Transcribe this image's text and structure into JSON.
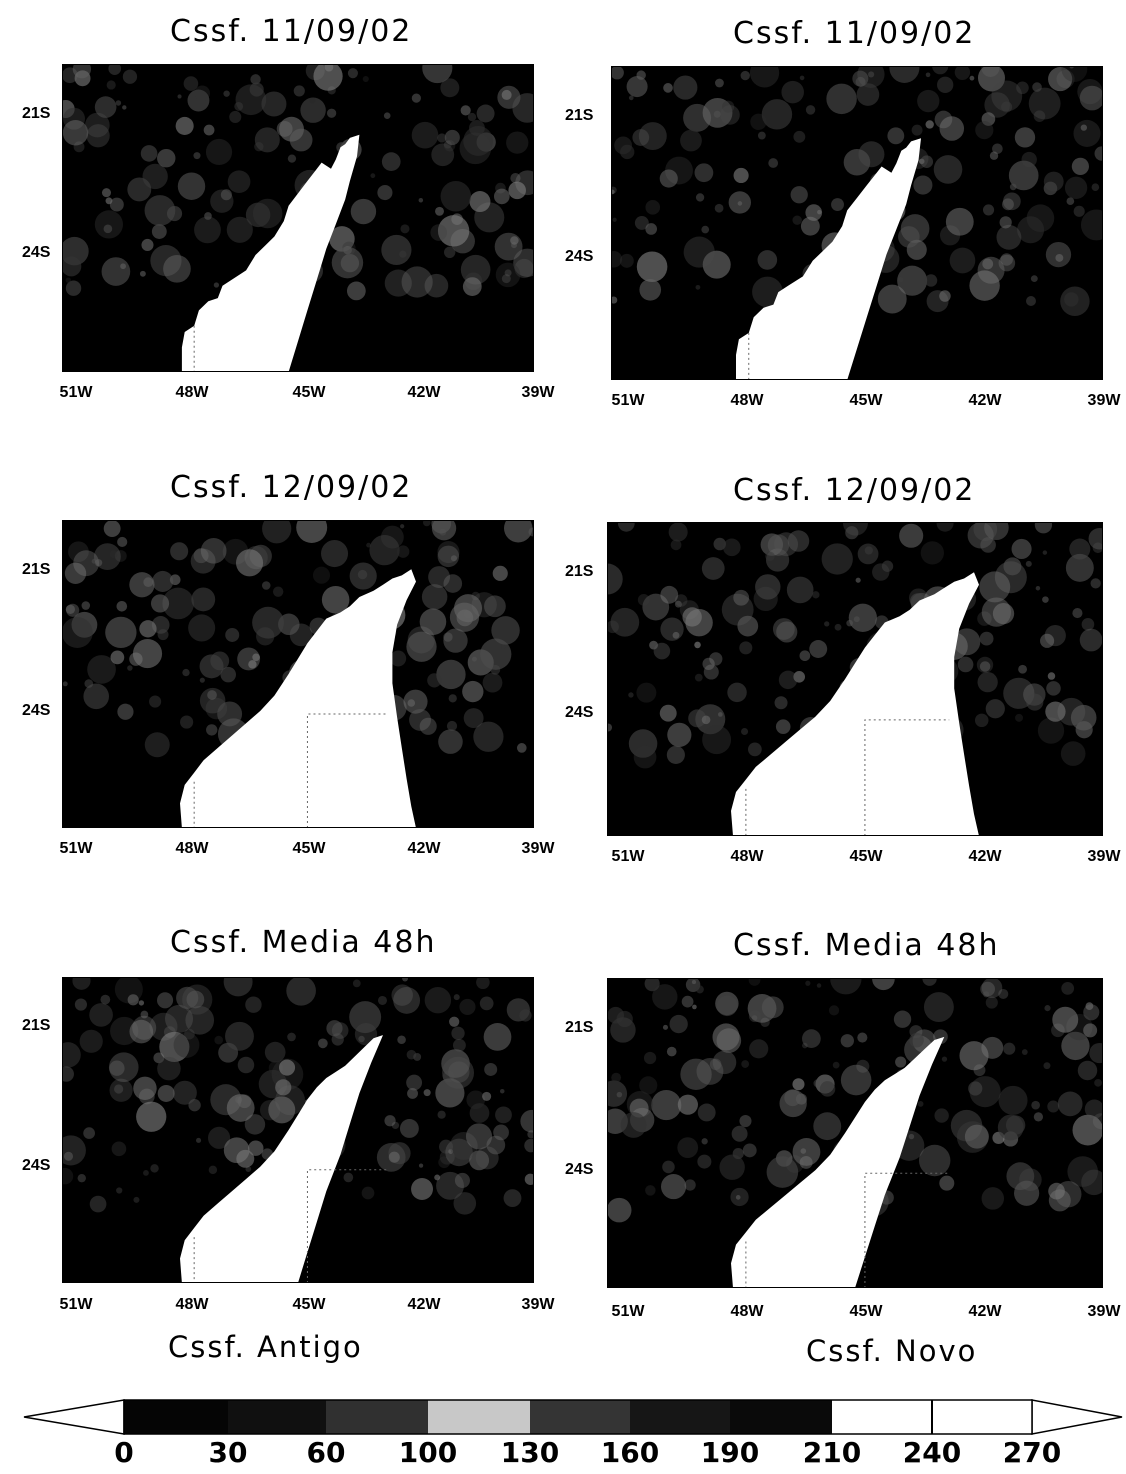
{
  "panels": [
    {
      "title": "Cssf. 11/09/02",
      "column": "antigo",
      "day": 1
    },
    {
      "title": "Cssf. 11/09/02",
      "column": "novo",
      "day": 1
    },
    {
      "title": "Cssf. 12/09/02",
      "column": "antigo",
      "day": 2
    },
    {
      "title": "Cssf. 12/09/02",
      "column": "novo",
      "day": 2
    },
    {
      "title": "Cssf. Media 48h",
      "column": "antigo",
      "day": 0
    },
    {
      "title": "Cssf. Media 48h",
      "column": "novo",
      "day": 0
    }
  ],
  "axes": {
    "yticks": [
      "21S",
      "24S"
    ],
    "xticks": [
      "51W",
      "48W",
      "45W",
      "42W",
      "39W"
    ]
  },
  "captions": {
    "left": "Cssf. Antigo",
    "right": "Cssf. Novo"
  },
  "colorbar": {
    "labels": [
      "0",
      "30",
      "60",
      "100",
      "130",
      "160",
      "190",
      "210",
      "240",
      "270"
    ],
    "colors": [
      "#050505",
      "#101010",
      "#303030",
      "#c8c8c8",
      "#343434",
      "#161616",
      "#0a0a0a",
      "#ffffff",
      "#ffffff"
    ],
    "extend": "both"
  },
  "colors": {
    "ocean": "#000000",
    "land": "#ffffff",
    "cloud": "#7a7a7a"
  }
}
